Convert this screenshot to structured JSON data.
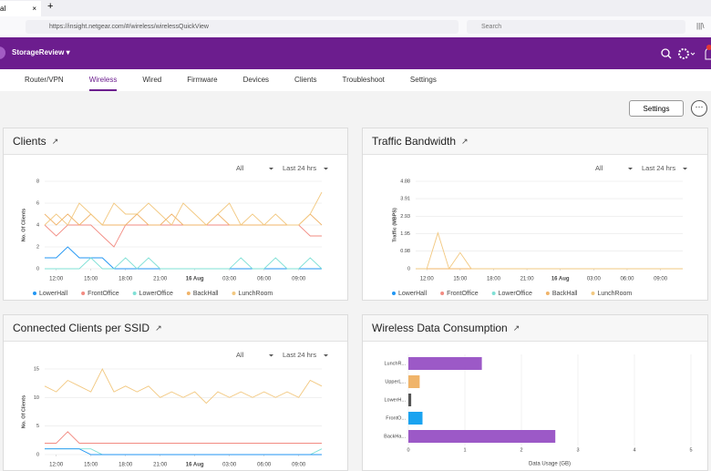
{
  "browser": {
    "tab_title": "al",
    "url": "https://insight.netgear.com/#/wireless/wirelessQuickView",
    "search": "Search"
  },
  "header": {
    "org": "StorageReview"
  },
  "nav": {
    "items": [
      "Router/VPN",
      "Wireless",
      "Wired",
      "Firmware",
      "Devices",
      "Clients",
      "Troubleshoot",
      "Settings"
    ],
    "active": 1
  },
  "settings_button": "Settings",
  "chart_data": [
    {
      "type": "line",
      "title": "Clients",
      "filter": "All",
      "period": "Last 24 hrs",
      "y_label": "No.  Of  Clients",
      "x": [
        11,
        12,
        13,
        14,
        15,
        16,
        17,
        18,
        19,
        20,
        21,
        22,
        23,
        24,
        25,
        26,
        27,
        28,
        29,
        30,
        31,
        32,
        33,
        34,
        35
      ],
      "xlim": [
        11,
        35
      ],
      "xticks": [
        {
          "value": 12,
          "label": "12:00"
        },
        {
          "value": 15,
          "label": "15:00"
        },
        {
          "value": 18,
          "label": "18:00"
        },
        {
          "value": 21,
          "label": "21:00"
        },
        {
          "value": 24,
          "label": "16 Aug"
        },
        {
          "value": 27,
          "label": "03:00"
        },
        {
          "value": 30,
          "label": "06:00"
        },
        {
          "value": 33,
          "label": "09:00"
        }
      ],
      "ylim": [
        0,
        8
      ],
      "yticks": [
        0,
        2,
        4,
        6,
        8
      ],
      "grid": true,
      "series": [
        {
          "name": "LowerHall",
          "color": "#2196f3",
          "values": [
            1,
            1,
            2,
            1,
            1,
            1,
            0,
            0,
            0,
            0,
            0,
            0,
            0,
            0,
            0,
            0,
            0,
            0,
            0,
            0,
            0,
            0,
            0,
            0,
            0
          ]
        },
        {
          "name": "FrontOffice",
          "color": "#f28b82",
          "values": [
            4,
            3,
            4,
            4,
            4,
            3,
            2,
            4,
            4,
            4,
            4,
            4,
            4,
            4,
            4,
            4,
            4,
            4,
            4,
            4,
            4,
            4,
            4,
            3,
            3
          ]
        },
        {
          "name": "LowerOffice",
          "color": "#7fe0d6",
          "values": [
            0,
            0,
            0,
            0,
            1,
            0,
            0,
            1,
            0,
            1,
            0,
            0,
            0,
            0,
            0,
            0,
            0,
            1,
            0,
            0,
            1,
            0,
            0,
            1,
            0
          ]
        },
        {
          "name": "BackHall",
          "color": "#f0b46a",
          "values": [
            5,
            4,
            5,
            4,
            5,
            4,
            4,
            4,
            5,
            4,
            4,
            5,
            4,
            4,
            4,
            5,
            4,
            4,
            4,
            4,
            4,
            4,
            4,
            5,
            4
          ]
        },
        {
          "name": "LunchRoom",
          "color": "#f2c880",
          "values": [
            4,
            5,
            4,
            6,
            5,
            4,
            6,
            5,
            5,
            6,
            5,
            4,
            6,
            5,
            4,
            5,
            6,
            4,
            5,
            4,
            5,
            4,
            4,
            5,
            7
          ]
        }
      ]
    },
    {
      "type": "line",
      "title": "Traffic Bandwidth",
      "filter": "All",
      "period": "Last 24 hrs",
      "y_label": "Traffic  (MBPS)",
      "x": [
        11,
        12,
        13,
        14,
        15,
        16,
        17,
        18,
        19,
        20,
        21,
        22,
        23,
        24,
        25,
        26,
        27,
        28,
        29,
        30,
        31,
        32,
        33,
        34,
        35
      ],
      "xlim": [
        11,
        35
      ],
      "xticks": [
        {
          "value": 12,
          "label": "12:00"
        },
        {
          "value": 15,
          "label": "15:00"
        },
        {
          "value": 18,
          "label": "18:00"
        },
        {
          "value": 21,
          "label": "21:00"
        },
        {
          "value": 24,
          "label": "16 Aug"
        },
        {
          "value": 27,
          "label": "03:00"
        },
        {
          "value": 30,
          "label": "06:00"
        },
        {
          "value": 33,
          "label": "09:00"
        }
      ],
      "ylim": [
        0,
        4.88
      ],
      "yticks": [
        0,
        0.98,
        1.95,
        2.93,
        3.91,
        4.88
      ],
      "grid": true,
      "series": [
        {
          "name": "LowerHall",
          "color": "#2196f3",
          "values": [
            0,
            0,
            0,
            0,
            0,
            0,
            0,
            0,
            0,
            0,
            0,
            0,
            0,
            0,
            0,
            0,
            0,
            0,
            0,
            0,
            0,
            0,
            0,
            0,
            0
          ]
        },
        {
          "name": "FrontOffice",
          "color": "#f28b82",
          "values": [
            0,
            0,
            0,
            0,
            0,
            0,
            0,
            0,
            0,
            0,
            0,
            0,
            0,
            0,
            0,
            0,
            0,
            0,
            0,
            0,
            0,
            0,
            0,
            0,
            0
          ]
        },
        {
          "name": "LowerOffice",
          "color": "#7fe0d6",
          "values": [
            0,
            0,
            0,
            0,
            0,
            0,
            0,
            0,
            0,
            0,
            0,
            0,
            0,
            0,
            0,
            0,
            0,
            0,
            0,
            0,
            0,
            0,
            0,
            0,
            0
          ]
        },
        {
          "name": "BackHall",
          "color": "#f0b46a",
          "values": [
            0,
            0,
            0,
            0,
            0,
            0,
            0,
            0,
            0,
            0,
            0,
            0,
            0,
            0,
            0,
            0,
            0,
            0,
            0,
            0,
            0,
            0,
            0,
            0,
            0
          ]
        },
        {
          "name": "LunchRoom",
          "color": "#f2c880",
          "values": [
            0,
            0,
            2,
            0,
            0.9,
            0,
            0,
            0,
            0,
            0,
            0,
            0,
            0,
            0,
            0,
            0,
            0,
            0,
            0,
            0,
            0,
            0,
            0,
            0,
            0
          ]
        }
      ]
    },
    {
      "type": "line",
      "title": "Connected Clients per SSID",
      "filter": "All",
      "period": "Last 24 hrs",
      "y_label": "No.  Of  Clients",
      "x": [
        11,
        12,
        13,
        14,
        15,
        16,
        17,
        18,
        19,
        20,
        21,
        22,
        23,
        24,
        25,
        26,
        27,
        28,
        29,
        30,
        31,
        32,
        33,
        34,
        35
      ],
      "xlim": [
        11,
        35
      ],
      "xticks": [
        {
          "value": 12,
          "label": "12:00"
        },
        {
          "value": 15,
          "label": "15:00"
        },
        {
          "value": 18,
          "label": "18:00"
        },
        {
          "value": 21,
          "label": "21:00"
        },
        {
          "value": 24,
          "label": "16 Aug"
        },
        {
          "value": 27,
          "label": "03:00"
        },
        {
          "value": 30,
          "label": "06:00"
        },
        {
          "value": 33,
          "label": "09:00"
        }
      ],
      "ylim": [
        0,
        15
      ],
      "yticks": [
        0,
        5,
        10,
        15
      ],
      "grid": true,
      "series": [
        {
          "color": "#f2c880",
          "values": [
            12,
            11,
            13,
            12,
            11,
            15,
            11,
            12,
            11,
            12,
            10,
            11,
            10,
            11,
            9,
            11,
            10,
            11,
            10,
            11,
            10,
            11,
            10,
            13,
            12
          ]
        },
        {
          "color": "#f28b82",
          "values": [
            2,
            2,
            4,
            2,
            2,
            2,
            2,
            2,
            2,
            2,
            2,
            2,
            2,
            2,
            2,
            2,
            2,
            2,
            2,
            2,
            2,
            2,
            2,
            2,
            2
          ]
        },
        {
          "color": "#7fe0d6",
          "values": [
            1,
            1,
            1,
            1,
            1,
            0,
            0,
            0,
            0,
            0,
            0,
            0,
            0,
            0,
            0,
            0,
            0,
            0,
            0,
            0,
            0,
            0,
            0,
            0,
            1
          ]
        },
        {
          "color": "#2196f3",
          "values": [
            1,
            1,
            1,
            1,
            0,
            0,
            0,
            0,
            0,
            0,
            0,
            0,
            0,
            0,
            0,
            0,
            0,
            0,
            0,
            0,
            0,
            0,
            0,
            0,
            0
          ]
        }
      ]
    },
    {
      "type": "hbar",
      "title": "Wireless Data Consumption",
      "x_label": "Data Usage (GB)",
      "categories": [
        "LunchR...",
        "UpperL...",
        "LowerH...",
        "FrontO...",
        "BackHa..."
      ],
      "values": [
        1.3,
        0.2,
        0.05,
        0.25,
        2.6
      ],
      "colors": [
        "#9c59c7",
        "#f0b46a",
        "#555555",
        "#1aa3f0",
        "#9c59c7"
      ],
      "xlim": [
        0,
        5
      ],
      "xticks": [
        0,
        1,
        2,
        3,
        4,
        5
      ],
      "grid": true
    }
  ]
}
